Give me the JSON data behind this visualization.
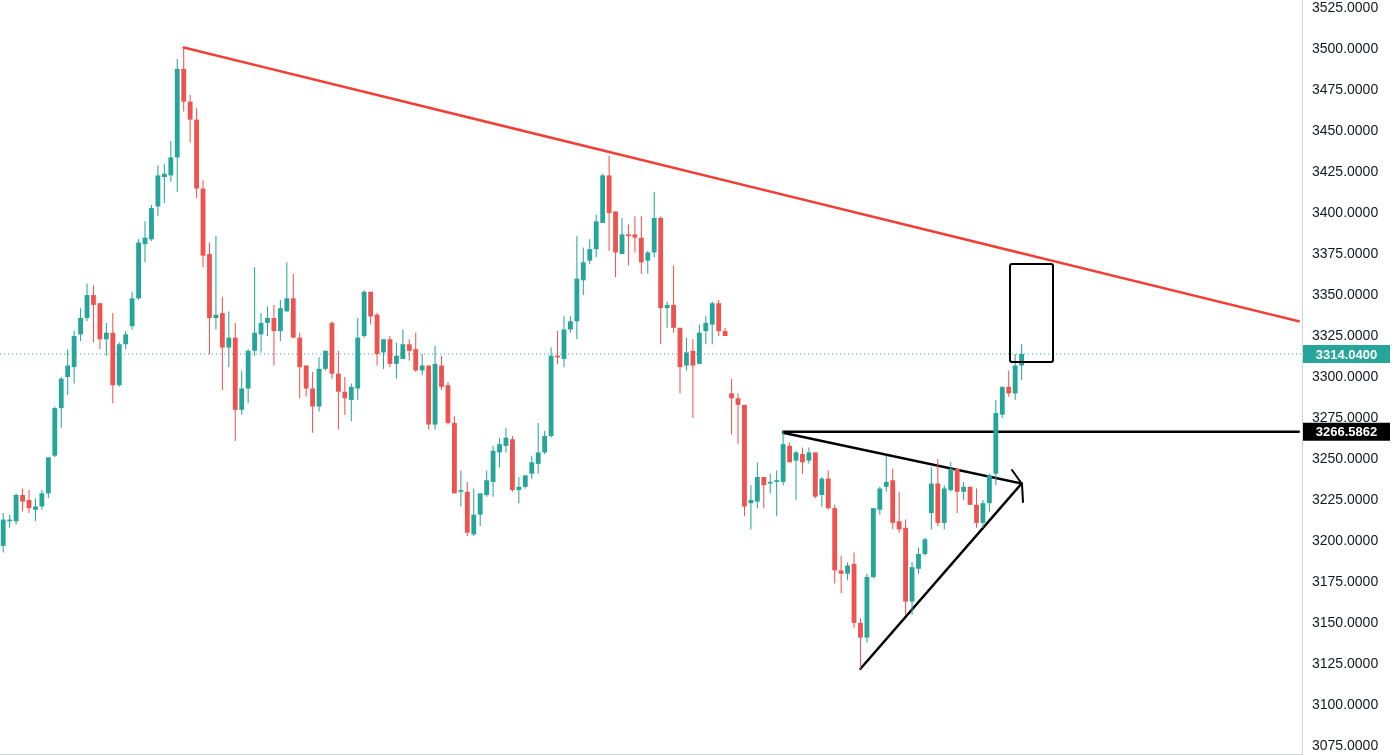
{
  "chart_data": {
    "type": "candlestick",
    "categories": [
      null,
      null,
      null,
      null,
      null,
      null,
      null,
      null,
      null,
      null,
      null,
      null,
      null,
      null,
      null,
      null,
      null,
      null,
      null,
      null,
      null,
      null,
      null,
      null,
      null,
      null,
      null,
      null,
      null,
      null,
      null,
      null,
      null,
      null,
      null,
      null,
      null,
      null,
      null,
      null,
      null,
      null,
      null,
      null,
      null,
      null,
      null,
      null,
      null,
      null,
      null,
      null,
      null,
      null,
      null,
      null,
      null,
      null,
      null,
      null,
      null,
      null,
      null,
      null,
      null,
      null,
      null,
      null,
      null,
      null,
      null,
      null,
      null,
      null,
      null,
      null,
      null,
      null,
      null,
      null,
      null,
      null,
      null,
      null,
      null,
      null,
      null,
      null,
      null,
      null,
      null,
      null,
      null,
      null,
      null,
      null,
      null,
      null,
      null,
      null,
      null,
      null,
      null,
      null,
      null,
      null,
      null,
      null,
      null,
      null,
      null,
      null,
      null,
      null,
      null,
      null,
      null,
      null,
      null,
      null,
      null,
      null,
      null,
      null,
      null,
      null,
      null,
      null,
      null,
      null,
      null,
      null,
      null,
      null,
      null,
      null,
      null,
      null,
      null,
      null,
      null,
      null,
      null,
      null,
      null,
      null,
      null,
      null,
      null,
      null,
      null,
      null,
      null,
      null,
      null,
      null,
      null,
      null,
      null,
      null,
      null,
      null,
      null,
      null,
      null,
      null,
      null,
      null,
      null,
      null,
      null,
      null,
      null,
      null,
      null,
      null,
      null,
      null,
      null,
      null,
      null,
      null,
      null,
      null,
      null,
      null,
      null,
      null,
      null,
      null,
      null,
      null,
      null,
      null,
      null,
      null,
      null,
      null,
      null,
      null,
      null,
      null
    ],
    "ohlc": [
      [
        3197,
        3217,
        3193,
        3213
      ],
      [
        3212,
        3216,
        3208,
        3213
      ],
      [
        3212,
        3229,
        3210,
        3228
      ],
      [
        3228,
        3232,
        3218,
        3224
      ],
      [
        3225,
        3231,
        3217,
        3220
      ],
      [
        3219,
        3226,
        3212,
        3221
      ],
      [
        3221,
        3231,
        3219,
        3229
      ],
      [
        3229,
        3251,
        3226,
        3251
      ],
      [
        3252,
        3282,
        3251,
        3281
      ],
      [
        3281,
        3300,
        3269,
        3299
      ],
      [
        3300,
        3317,
        3289,
        3307
      ],
      [
        3306,
        3328,
        3296,
        3325
      ],
      [
        3326,
        3342,
        3322,
        3336
      ],
      [
        3336,
        3357,
        3334,
        3350
      ],
      [
        3350,
        3356,
        3321,
        3344
      ],
      [
        3345,
        3345,
        3317,
        3323
      ],
      [
        3323,
        3333,
        3313,
        3327
      ],
      [
        3327,
        3339,
        3284,
        3295
      ],
      [
        3295,
        3321,
        3294,
        3320
      ],
      [
        3320,
        3328,
        3317,
        3326
      ],
      [
        3331,
        3352,
        3329,
        3348
      ],
      [
        3348,
        3384,
        3347,
        3382
      ],
      [
        3381,
        3395,
        3370,
        3385
      ],
      [
        3384,
        3405,
        3383,
        3403
      ],
      [
        3404,
        3429,
        3398,
        3423
      ],
      [
        3422,
        3430,
        3406,
        3424
      ],
      [
        3423,
        3444,
        3419,
        3434
      ],
      [
        3434,
        3494,
        3413,
        3488
      ],
      [
        3488,
        3501,
        3462,
        3468
      ],
      [
        3468,
        3472,
        3443,
        3457
      ],
      [
        3457,
        3464,
        3409,
        3415
      ],
      [
        3415,
        3420,
        3367,
        3374
      ],
      [
        3375,
        3382,
        3314,
        3336
      ],
      [
        3336,
        3386,
        3329,
        3338
      ],
      [
        3339,
        3349,
        3292,
        3318
      ],
      [
        3318,
        3340,
        3306,
        3324
      ],
      [
        3324,
        3333,
        3261,
        3280
      ],
      [
        3280,
        3304,
        3277,
        3293
      ],
      [
        3293,
        3317,
        3284,
        3316
      ],
      [
        3316,
        3367,
        3313,
        3327
      ],
      [
        3326,
        3339,
        3315,
        3333
      ],
      [
        3333,
        3343,
        3325,
        3336
      ],
      [
        3336,
        3344,
        3307,
        3328
      ],
      [
        3328,
        3347,
        3322,
        3342
      ],
      [
        3340,
        3370,
        3340,
        3348
      ],
      [
        3348,
        3363,
        3324,
        3324
      ],
      [
        3324,
        3327,
        3287,
        3306
      ],
      [
        3307,
        3307,
        3288,
        3293
      ],
      [
        3293,
        3303,
        3266,
        3282
      ],
      [
        3282,
        3312,
        3279,
        3305
      ],
      [
        3305,
        3316,
        3304,
        3316
      ],
      [
        3333,
        3334,
        3299,
        3302
      ],
      [
        3302,
        3316,
        3268,
        3291
      ],
      [
        3291,
        3300,
        3277,
        3287
      ],
      [
        3286,
        3296,
        3273,
        3294
      ],
      [
        3293,
        3336,
        3286,
        3324
      ],
      [
        3325,
        3353,
        3324,
        3352
      ],
      [
        3352,
        3352,
        3332,
        3337
      ],
      [
        3338,
        3339,
        3307,
        3314
      ],
      [
        3315,
        3323,
        3305,
        3323
      ],
      [
        3323,
        3325,
        3306,
        3308
      ],
      [
        3308,
        3321,
        3299,
        3313
      ],
      [
        3311,
        3329,
        3311,
        3320
      ],
      [
        3320,
        3323,
        3310,
        3316
      ],
      [
        3317,
        3327,
        3303,
        3304
      ],
      [
        3304,
        3314,
        3301,
        3307
      ],
      [
        3307,
        3307,
        3268,
        3271
      ],
      [
        3271,
        3319,
        3268,
        3308
      ],
      [
        3307,
        3313,
        3292,
        3294
      ],
      [
        3295,
        3297,
        3271,
        3272
      ],
      [
        3272,
        3276,
        3229,
        3229
      ],
      [
        3230,
        3243,
        3221,
        3231
      ],
      [
        3230,
        3236,
        3203,
        3205
      ],
      [
        3204,
        3232,
        3203,
        3216
      ],
      [
        3216,
        3229,
        3209,
        3229
      ],
      [
        3228,
        3243,
        3227,
        3237
      ],
      [
        3236,
        3258,
        3227,
        3255
      ],
      [
        3254,
        3263,
        3245,
        3259
      ],
      [
        3258,
        3269,
        3254,
        3263
      ],
      [
        3262,
        3264,
        3230,
        3231
      ],
      [
        3231,
        3239,
        3223,
        3233
      ],
      [
        3233,
        3240,
        3232,
        3240
      ],
      [
        3241,
        3252,
        3238,
        3248
      ],
      [
        3247,
        3272,
        3241,
        3254
      ],
      [
        3254,
        3267,
        3253,
        3264
      ],
      [
        3264,
        3318,
        3263,
        3313
      ],
      [
        3313,
        3328,
        3308,
        3312
      ],
      [
        3311,
        3337,
        3306,
        3329
      ],
      [
        3329,
        3337,
        3327,
        3334
      ],
      [
        3334,
        3386,
        3323,
        3360
      ],
      [
        3359,
        3379,
        3350,
        3370
      ],
      [
        3371,
        3384,
        3369,
        3378
      ],
      [
        3378,
        3399,
        3373,
        3395
      ],
      [
        3394,
        3424,
        3394,
        3423
      ],
      [
        3423,
        3435,
        3377,
        3400
      ],
      [
        3401,
        3401,
        3361,
        3376
      ],
      [
        3375,
        3397,
        3375,
        3387
      ],
      [
        3387,
        3393,
        3368,
        3386
      ],
      [
        3387,
        3398,
        3376,
        3385
      ],
      [
        3385,
        3398,
        3363,
        3370
      ],
      [
        3371,
        3377,
        3363,
        3376
      ],
      [
        3376,
        3413,
        3373,
        3397
      ],
      [
        3397,
        3398,
        3320,
        3342
      ],
      [
        3342,
        3346,
        3330,
        3344
      ],
      [
        3344,
        3368,
        3327,
        3330
      ],
      [
        3330,
        3330,
        3290,
        3306
      ],
      [
        3307,
        3324,
        3304,
        3315
      ],
      [
        3316,
        3323,
        3275,
        3307
      ],
      [
        3308,
        3332,
        3308,
        3327
      ],
      [
        3328,
        3337,
        3320,
        3333
      ],
      [
        3332,
        3346,
        3320,
        3345
      ],
      [
        3345,
        3347,
        3325,
        3328
      ],
      [
        3328,
        3330,
        3325,
        3325
      ],
      [
        3290,
        3299,
        3265,
        3287
      ],
      [
        3287,
        3290,
        3259,
        3283
      ],
      [
        3283,
        3283,
        3215,
        3221
      ],
      [
        3223,
        3234,
        3207,
        3225
      ],
      [
        3224,
        3248,
        3220,
        3239
      ],
      [
        3239,
        3239,
        3220,
        3234
      ],
      [
        3235,
        3241,
        3229,
        3236
      ],
      [
        3236,
        3243,
        3215,
        3237
      ],
      [
        3236,
        3267,
        3234,
        3259
      ],
      [
        3258,
        3260,
        3248,
        3248
      ],
      [
        3249,
        3255,
        3225,
        3254
      ],
      [
        3253,
        3257,
        3241,
        3248
      ],
      [
        3249,
        3257,
        3247,
        3254
      ],
      [
        3254,
        3254,
        3226,
        3227
      ],
      [
        3228,
        3239,
        3221,
        3238
      ],
      [
        3238,
        3243,
        3219,
        3220
      ],
      [
        3220,
        3222,
        3174,
        3182
      ],
      [
        3182,
        3191,
        3168,
        3180
      ],
      [
        3180,
        3187,
        3176,
        3185
      ],
      [
        3186,
        3193,
        3147,
        3150
      ],
      [
        3150,
        3153,
        3122,
        3141
      ],
      [
        3141,
        3180,
        3138,
        3178
      ],
      [
        3178,
        3220,
        3177,
        3220
      ],
      [
        3219,
        3233,
        3216,
        3232
      ],
      [
        3233,
        3252,
        3230,
        3236
      ],
      [
        3237,
        3244,
        3207,
        3211
      ],
      [
        3212,
        3230,
        3205,
        3207
      ],
      [
        3208,
        3213,
        3155,
        3163
      ],
      [
        3163,
        3187,
        3155,
        3184
      ],
      [
        3183,
        3196,
        3180,
        3192
      ],
      [
        3192,
        3202,
        3191,
        3201
      ],
      [
        3217,
        3245,
        3207,
        3235
      ],
      [
        3235,
        3250,
        3209,
        3211
      ],
      [
        3211,
        3234,
        3207,
        3232
      ],
      [
        3231,
        3248,
        3230,
        3244
      ],
      [
        3244,
        3244,
        3217,
        3230
      ],
      [
        3230,
        3236,
        3225,
        3233
      ],
      [
        3233,
        3233,
        3222,
        3222
      ],
      [
        3222,
        3232,
        3208,
        3211
      ],
      [
        3211,
        3225,
        3208,
        3223
      ],
      [
        3223,
        3241,
        3218,
        3240
      ],
      [
        3241,
        3286,
        3234,
        3278
      ],
      [
        3277,
        3294,
        3275,
        3294
      ],
      [
        3294,
        3304,
        3288,
        3290
      ],
      [
        3290,
        3314,
        3286,
        3307
      ],
      [
        3307,
        3320,
        3298,
        3314.04
      ],
      null,
      null,
      null,
      null,
      null,
      null,
      null,
      null,
      null,
      null,
      null,
      null,
      null,
      null,
      null,
      null,
      null,
      null,
      null,
      null,
      null,
      null,
      null,
      null,
      null,
      null,
      null,
      null,
      null,
      null,
      null,
      null,
      null,
      null,
      null,
      null,
      null,
      null,
      null,
      null,
      null,
      null,
      null
    ],
    "colors": [
      "#26a69a",
      "#26a69a",
      "#26a69a",
      "#ef5350",
      "#ef5350",
      "#26a69a",
      "#26a69a",
      "#26a69a",
      "#26a69a",
      "#26a69a",
      "#26a69a",
      "#26a69a",
      "#26a69a",
      "#26a69a",
      "#ef5350",
      "#ef5350",
      "#26a69a",
      "#ef5350",
      "#26a69a",
      "#26a69a",
      "#26a69a",
      "#26a69a",
      "#26a69a",
      "#26a69a",
      "#26a69a",
      "#26a69a",
      "#26a69a",
      "#26a69a",
      "#ef5350",
      "#ef5350",
      "#ef5350",
      "#ef5350",
      "#ef5350",
      "#26a69a",
      "#ef5350",
      "#26a69a",
      "#ef5350",
      "#26a69a",
      "#26a69a",
      "#26a69a",
      "#26a69a",
      "#26a69a",
      "#ef5350",
      "#26a69a",
      "#26a69a",
      "#ef5350",
      "#ef5350",
      "#ef5350",
      "#ef5350",
      "#26a69a",
      "#26a69a",
      "#ef5350",
      "#ef5350",
      "#ef5350",
      "#26a69a",
      "#26a69a",
      "#26a69a",
      "#ef5350",
      "#ef5350",
      "#26a69a",
      "#ef5350",
      "#26a69a",
      "#26a69a",
      "#ef5350",
      "#ef5350",
      "#26a69a",
      "#ef5350",
      "#26a69a",
      "#ef5350",
      "#ef5350",
      "#ef5350",
      "#26a69a",
      "#ef5350",
      "#26a69a",
      "#26a69a",
      "#26a69a",
      "#26a69a",
      "#26a69a",
      "#26a69a",
      "#ef5350",
      "#26a69a",
      "#26a69a",
      "#26a69a",
      "#26a69a",
      "#26a69a",
      "#26a69a",
      "#ef5350",
      "#26a69a",
      "#26a69a",
      "#26a69a",
      "#26a69a",
      "#26a69a",
      "#26a69a",
      "#26a69a",
      "#ef5350",
      "#ef5350",
      "#26a69a",
      "#ef5350",
      "#ef5350",
      "#ef5350",
      "#26a69a",
      "#26a69a",
      "#ef5350",
      "#26a69a",
      "#ef5350",
      "#ef5350",
      "#26a69a",
      "#ef5350",
      "#26a69a",
      "#26a69a",
      "#26a69a",
      "#ef5350",
      "#ef5350",
      "#ef5350",
      "#ef5350",
      "#ef5350",
      "#26a69a",
      "#26a69a",
      "#ef5350",
      "#26a69a",
      "#26a69a",
      "#26a69a",
      "#ef5350",
      "#26a69a",
      "#ef5350",
      "#26a69a",
      "#ef5350",
      "#26a69a",
      "#ef5350",
      "#ef5350",
      "#ef5350",
      "#26a69a",
      "#ef5350",
      "#ef5350",
      "#26a69a",
      "#26a69a",
      "#26a69a",
      "#26a69a",
      "#ef5350",
      "#ef5350",
      "#ef5350",
      "#26a69a",
      "#26a69a",
      "#26a69a",
      "#26a69a",
      "#ef5350",
      "#26a69a",
      "#26a69a",
      "#ef5350",
      "#26a69a",
      "#ef5350",
      "#ef5350",
      "#26a69a",
      "#26a69a",
      "#26a69a",
      "#26a69a",
      "#ef5350",
      "#26a69a",
      "#26a69a",
      null,
      null,
      null,
      null,
      null,
      null,
      null,
      null,
      null,
      null,
      null,
      null,
      null,
      null,
      null,
      null,
      null,
      null,
      null,
      null,
      null,
      null,
      null,
      null,
      null,
      null,
      null,
      null,
      null,
      null,
      null,
      null,
      null,
      null,
      null,
      null,
      null,
      null,
      null,
      null,
      null,
      null,
      null
    ],
    "series": [
      {
        "type": "line",
        "color": "#f23f35",
        "values": [
          null,
          null,
          null,
          null,
          null,
          null,
          null,
          null,
          null,
          null,
          null,
          null,
          null,
          null,
          null,
          null,
          null,
          null,
          null,
          null,
          null,
          null,
          null,
          null,
          null,
          null,
          null,
          null,
          3501,
          null,
          null,
          null,
          null,
          null,
          null,
          null,
          null,
          null,
          null,
          null,
          null,
          null,
          null,
          null,
          null,
          null,
          null,
          null,
          null,
          null,
          null,
          null,
          null,
          null,
          null,
          null,
          null,
          null,
          null,
          null,
          null,
          null,
          null,
          null,
          null,
          null,
          null,
          null,
          null,
          null,
          null,
          null,
          null,
          null,
          null,
          null,
          null,
          null,
          null,
          null,
          null,
          null,
          null,
          null,
          null,
          null,
          null,
          null,
          null,
          null,
          null,
          null,
          null,
          null,
          null,
          null,
          null,
          null,
          null,
          null,
          null,
          null,
          null,
          null,
          null,
          null,
          null,
          null,
          null,
          null,
          null,
          null,
          null,
          null,
          null,
          null,
          null,
          null,
          null,
          null,
          null,
          null,
          null,
          null,
          null,
          null,
          null,
          null,
          null,
          null,
          null,
          null,
          null,
          null,
          null,
          null,
          null,
          null,
          null,
          null,
          null,
          null,
          null,
          null,
          null,
          null,
          null,
          null,
          null,
          null,
          null,
          null,
          null,
          null,
          null,
          null,
          null,
          null,
          null,
          null,
          null,
          null,
          null,
          null,
          null,
          null,
          null,
          null,
          null,
          null,
          null,
          null,
          null,
          null,
          null,
          null,
          null,
          null,
          null,
          null,
          null,
          null,
          null,
          null,
          null,
          null,
          null,
          null,
          null,
          null,
          null,
          null,
          null,
          null,
          null,
          null,
          null,
          null,
          null,
          null,
          null,
          3334
        ]
      },
      {
        "type": "line",
        "color": "#000000",
        "values": [
          null,
          null,
          null,
          null,
          null,
          null,
          null,
          null,
          null,
          null,
          null,
          null,
          null,
          null,
          null,
          null,
          null,
          null,
          null,
          null,
          null,
          null,
          null,
          null,
          null,
          null,
          null,
          null,
          null,
          null,
          null,
          null,
          null,
          null,
          null,
          null,
          null,
          null,
          null,
          null,
          null,
          null,
          null,
          null,
          null,
          null,
          null,
          null,
          null,
          null,
          null,
          null,
          null,
          null,
          null,
          null,
          null,
          null,
          null,
          null,
          null,
          null,
          null,
          null,
          null,
          null,
          null,
          null,
          null,
          null,
          null,
          null,
          null,
          null,
          null,
          null,
          null,
          null,
          null,
          null,
          null,
          null,
          null,
          null,
          null,
          null,
          null,
          null,
          null,
          null,
          null,
          null,
          null,
          null,
          null,
          null,
          null,
          null,
          null,
          null,
          null,
          null,
          null,
          null,
          null,
          null,
          null,
          null,
          null,
          null,
          null,
          null,
          null,
          null,
          null,
          null,
          null,
          null,
          null,
          null,
          null,
          3266,
          null,
          null,
          null,
          null,
          null,
          null,
          null,
          null,
          null,
          null,
          null,
          null,
          null,
          null,
          null,
          null,
          null,
          null,
          null,
          null,
          null,
          null,
          null,
          null,
          null,
          null,
          null,
          null,
          null,
          null,
          null,
          null,
          null,
          null,
          null,
          null,
          3235,
          null,
          null,
          null,
          null,
          null,
          null,
          null,
          null,
          null,
          null,
          null,
          null,
          null,
          null,
          null,
          null,
          null,
          null,
          null,
          null,
          null,
          null,
          null,
          null,
          null,
          null,
          null,
          null,
          null,
          null,
          null,
          null,
          null,
          null,
          null,
          null,
          null,
          null,
          null,
          null,
          null,
          null,
          null
        ]
      },
      {
        "type": "line",
        "color": "#000000",
        "values": [
          null,
          null,
          null,
          null,
          null,
          null,
          null,
          null,
          null,
          null,
          null,
          null,
          null,
          null,
          null,
          null,
          null,
          null,
          null,
          null,
          null,
          null,
          null,
          null,
          null,
          null,
          null,
          null,
          null,
          null,
          null,
          null,
          null,
          null,
          null,
          null,
          null,
          null,
          null,
          null,
          null,
          null,
          null,
          null,
          null,
          null,
          null,
          null,
          null,
          null,
          null,
          null,
          null,
          null,
          null,
          null,
          null,
          null,
          null,
          null,
          null,
          null,
          null,
          null,
          null,
          null,
          null,
          null,
          null,
          null,
          null,
          null,
          null,
          null,
          null,
          null,
          null,
          null,
          null,
          null,
          null,
          null,
          null,
          null,
          null,
          null,
          null,
          null,
          null,
          null,
          null,
          null,
          null,
          null,
          null,
          null,
          null,
          null,
          null,
          null,
          null,
          null,
          null,
          null,
          null,
          null,
          null,
          null,
          null,
          null,
          null,
          null,
          null,
          null,
          null,
          null,
          null,
          null,
          null,
          null,
          null,
          null,
          null,
          null,
          null,
          null,
          null,
          null,
          null,
          null,
          null,
          null,
          null,
          3122,
          null,
          null,
          null,
          null,
          null,
          null,
          null,
          null,
          null,
          null,
          null,
          null,
          null,
          null,
          null,
          null,
          null,
          null,
          null,
          null,
          null,
          null,
          null,
          null,
          3235,
          null,
          null,
          null,
          null,
          null,
          null,
          null,
          null,
          null,
          null,
          null,
          null,
          null,
          null,
          null,
          null,
          null,
          null,
          null,
          null,
          null,
          null,
          null,
          null,
          null,
          null,
          null,
          null,
          null,
          null,
          null,
          null,
          null,
          null,
          null,
          null,
          null,
          null,
          null,
          null,
          null,
          null,
          null
        ]
      },
      {
        "type": "line",
        "color": "#000000",
        "values": [
          null,
          null,
          null,
          null,
          null,
          null,
          null,
          null,
          null,
          null,
          null,
          null,
          null,
          null,
          null,
          null,
          null,
          null,
          null,
          null,
          null,
          null,
          null,
          null,
          null,
          null,
          null,
          null,
          null,
          null,
          null,
          null,
          null,
          null,
          null,
          null,
          null,
          null,
          null,
          null,
          null,
          null,
          null,
          null,
          null,
          null,
          null,
          null,
          null,
          null,
          null,
          null,
          null,
          null,
          null,
          null,
          null,
          null,
          null,
          null,
          null,
          null,
          null,
          null,
          null,
          null,
          null,
          null,
          null,
          null,
          null,
          null,
          null,
          null,
          null,
          null,
          null,
          null,
          null,
          null,
          null,
          null,
          null,
          null,
          null,
          null,
          null,
          null,
          null,
          null,
          null,
          null,
          null,
          null,
          null,
          null,
          null,
          null,
          null,
          null,
          null,
          null,
          null,
          null,
          null,
          null,
          null,
          null,
          null,
          null,
          null,
          null,
          null,
          null,
          null,
          null,
          null,
          null,
          null,
          null,
          null,
          3266.5862,
          null,
          null,
          null,
          null,
          null,
          null,
          null,
          null,
          null,
          null,
          null,
          null,
          null,
          null,
          null,
          null,
          null,
          null,
          null,
          null,
          null,
          null,
          null,
          null,
          null,
          null,
          null,
          null,
          null,
          null,
          null,
          null,
          null,
          null,
          null,
          null,
          null,
          null,
          null,
          null,
          null,
          null,
          null,
          null,
          null,
          null,
          null,
          null,
          null,
          null,
          null,
          null,
          null,
          null,
          null,
          null,
          null,
          null,
          null,
          null,
          null,
          null,
          null,
          null,
          null,
          null,
          null,
          null,
          null,
          null,
          null,
          null,
          null,
          null,
          null,
          null,
          null,
          null,
          null,
          3266.5862
        ],
        "value_labels": [
          null,
          null,
          null,
          null,
          null,
          null,
          null,
          null,
          null,
          null,
          null,
          null,
          null,
          null,
          null,
          null,
          null,
          null,
          null,
          null,
          null,
          null,
          null,
          null,
          null,
          null,
          null,
          null,
          null,
          null,
          null,
          null,
          null,
          null,
          null,
          null,
          null,
          null,
          null,
          null,
          null,
          null,
          null,
          null,
          null,
          null,
          null,
          null,
          null,
          null,
          null,
          null,
          null,
          null,
          null,
          null,
          null,
          null,
          null,
          null,
          null,
          null,
          null,
          null,
          null,
          null,
          null,
          null,
          null,
          null,
          null,
          null,
          null,
          null,
          null,
          null,
          null,
          null,
          null,
          null,
          null,
          null,
          null,
          null,
          null,
          null,
          null,
          null,
          null,
          null,
          null,
          null,
          null,
          null,
          null,
          null,
          null,
          null,
          null,
          null,
          null,
          null,
          null,
          null,
          null,
          null,
          null,
          null,
          null,
          null,
          null,
          null,
          null,
          null,
          null,
          null,
          null,
          null,
          null,
          null,
          null,
          null,
          null,
          null,
          null,
          null,
          null,
          null,
          null,
          null,
          null,
          null,
          null,
          null,
          null,
          null,
          null,
          null,
          null,
          null,
          null,
          null,
          null,
          null,
          null,
          null,
          null,
          null,
          null,
          null,
          null,
          null,
          null,
          null,
          null,
          null,
          null,
          null,
          null,
          null,
          null,
          null,
          null,
          null,
          null,
          null,
          null,
          null,
          null,
          null,
          null,
          null,
          null,
          null,
          null,
          null,
          null,
          null,
          null,
          null,
          null,
          null,
          null,
          null,
          null,
          null,
          null,
          null,
          null,
          null,
          null,
          null,
          null,
          null,
          null,
          null,
          null,
          null,
          null,
          null,
          null,
          "3266.5862"
        ]
      }
    ],
    "ref_lines": [
      {
        "axis": "y",
        "value": 3314.04,
        "label": "3314.0400",
        "color": "#26a69a",
        "line_style": "dotted"
      }
    ],
    "ylim": [
      3070,
      3530
    ],
    "yticks": [
      {
        "value": 3075,
        "label": "3075.0000"
      },
      {
        "value": 3100,
        "label": "3100.0000"
      },
      {
        "value": 3125,
        "label": "3125.0000"
      },
      {
        "value": 3150,
        "label": "3150.0000"
      },
      {
        "value": 3175,
        "label": "3175.0000"
      },
      {
        "value": 3200,
        "label": "3200.0000"
      },
      {
        "value": 3225,
        "label": "3225.0000"
      },
      {
        "value": 3250,
        "label": "3250.0000"
      },
      {
        "value": 3275,
        "label": "3275.0000"
      },
      {
        "value": 3300,
        "label": "3300.0000"
      },
      {
        "value": 3325,
        "label": "3325.0000"
      },
      {
        "value": 3350,
        "label": "3350.0000"
      },
      {
        "value": 3375,
        "label": "3375.0000"
      },
      {
        "value": 3400,
        "label": "3400.0000"
      },
      {
        "value": 3425,
        "label": "3425.0000"
      },
      {
        "value": 3450,
        "label": "3450.0000"
      },
      {
        "value": 3475,
        "label": "3475.0000"
      },
      {
        "value": 3500,
        "label": "3500.0000"
      },
      {
        "value": 3525,
        "label": "3525.0000"
      }
    ],
    "grid": false,
    "tick_labels": "y"
  }
}
